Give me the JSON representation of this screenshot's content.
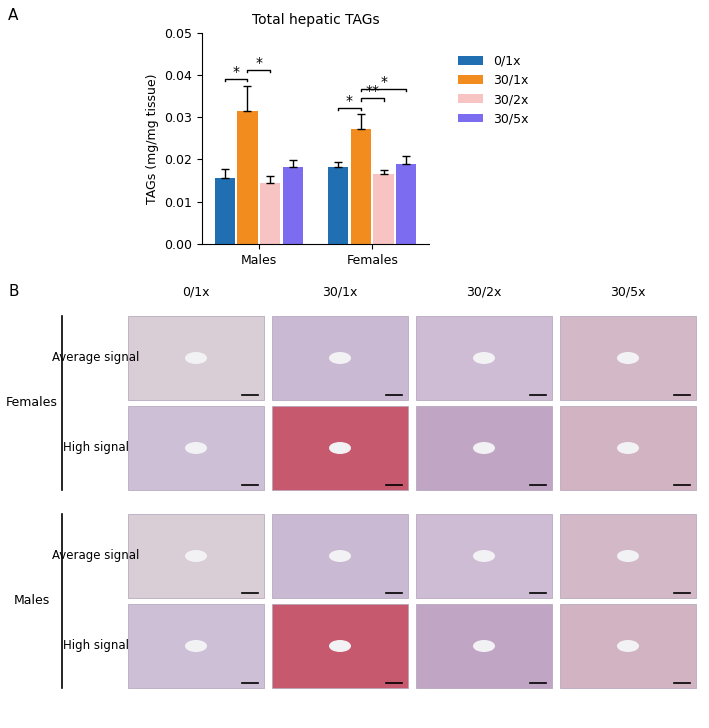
{
  "chart_data": {
    "type": "bar",
    "title": "Total hepatic TAGs",
    "y_label": "TAGs (mg/mg tissue)",
    "categories": [
      "Males",
      "Females"
    ],
    "series": [
      {
        "name": "0/1x",
        "color": "#1f6fb2",
        "values": [
          0.0157,
          0.0183
        ],
        "errors": [
          0.002,
          0.001
        ]
      },
      {
        "name": "30/1x",
        "color": "#f28c1e",
        "values": [
          0.0315,
          0.0272
        ],
        "errors": [
          0.006,
          0.0035
        ]
      },
      {
        "name": "30/2x",
        "color": "#f7c3c3",
        "values": [
          0.0143,
          0.0165
        ],
        "errors": [
          0.0018,
          0.001
        ]
      },
      {
        "name": "30/5x",
        "color": "#7b6cf0",
        "values": [
          0.0182,
          0.0188
        ],
        "errors": [
          0.0016,
          0.002
        ]
      }
    ],
    "significance": [
      {
        "category": "Males",
        "from": "0/1x",
        "to": "30/1x",
        "label": "*"
      },
      {
        "category": "Males",
        "from": "30/1x",
        "to": "30/2x",
        "label": "*"
      },
      {
        "category": "Females",
        "from": "0/1x",
        "to": "30/1x",
        "label": "*"
      },
      {
        "category": "Females",
        "from": "30/1x",
        "to": "30/2x",
        "label": "**"
      },
      {
        "category": "Females",
        "from": "30/1x",
        "to": "30/5x",
        "label": "*"
      }
    ],
    "ylim": [
      0,
      0.05
    ],
    "yticks": [
      {
        "value": 0,
        "label": "0.00"
      },
      {
        "value": 0.01,
        "label": "0.01"
      },
      {
        "value": 0.02,
        "label": "0.02"
      },
      {
        "value": 0.03,
        "label": "0.03"
      },
      {
        "value": 0.04,
        "label": "0.04"
      },
      {
        "value": 0.05,
        "label": "0.05"
      }
    ],
    "legend": "right",
    "grid": false
  },
  "panel_labels": [
    "A",
    "B"
  ],
  "panel_b": {
    "columns": [
      "0/1x",
      "30/1x",
      "30/2x",
      "30/5x"
    ],
    "groups": [
      {
        "name": "Females",
        "rows": [
          "Average signal",
          "High signal"
        ]
      },
      {
        "name": "Males",
        "rows": [
          "Average signal",
          "High signal"
        ]
      }
    ]
  }
}
